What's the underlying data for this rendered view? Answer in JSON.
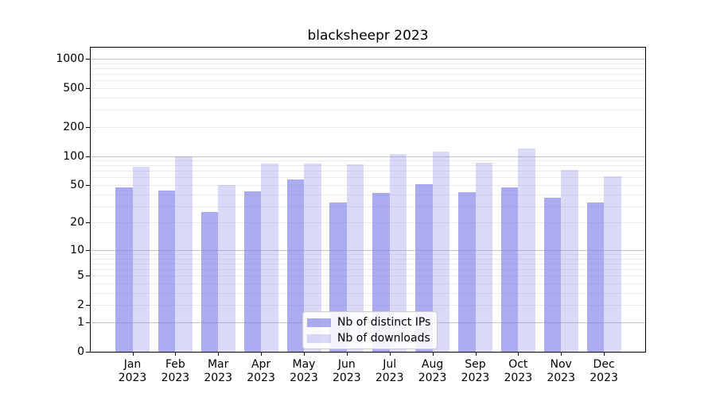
{
  "title": "blacksheepr 2023",
  "chart_data": {
    "type": "bar",
    "title": "blacksheepr 2023",
    "categories": [
      "Jan 2023",
      "Feb 2023",
      "Mar 2023",
      "Apr 2023",
      "May 2023",
      "Jun 2023",
      "Jul 2023",
      "Aug 2023",
      "Sep 2023",
      "Oct 2023",
      "Nov 2023",
      "Dec 2023"
    ],
    "series": [
      {
        "name": "Nb of distinct IPs",
        "color": "#7f7fe8",
        "alpha": 0.66,
        "values": [
          47,
          44,
          26,
          43,
          57,
          33,
          41,
          51,
          42,
          47,
          37,
          33
        ]
      },
      {
        "name": "Nb of downloads",
        "color": "#7f7fe8",
        "alpha": 0.29,
        "values": [
          78,
          100,
          50,
          84,
          84,
          82,
          105,
          110,
          85,
          120,
          72,
          62
        ]
      }
    ],
    "xlabel": "",
    "ylabel": "",
    "yscale": "log1p",
    "ylim": [
      0,
      1325
    ],
    "yticks": [
      0,
      1,
      2,
      5,
      10,
      20,
      50,
      100,
      200,
      500,
      1000
    ],
    "major_grid_values": [
      1,
      10,
      100,
      1000
    ],
    "minor_grid_values": [
      2,
      3,
      4,
      5,
      6,
      7,
      8,
      9,
      20,
      30,
      40,
      50,
      60,
      70,
      80,
      90,
      200,
      300,
      400,
      500,
      600,
      700,
      800,
      900
    ],
    "grid": true,
    "legend_position": "lower center",
    "colors": {
      "major_gridline": "#c4c4c4",
      "minor_gridline": "#ebebeb",
      "axis": "#000000",
      "text": "#000000",
      "background": "#ffffff"
    }
  }
}
